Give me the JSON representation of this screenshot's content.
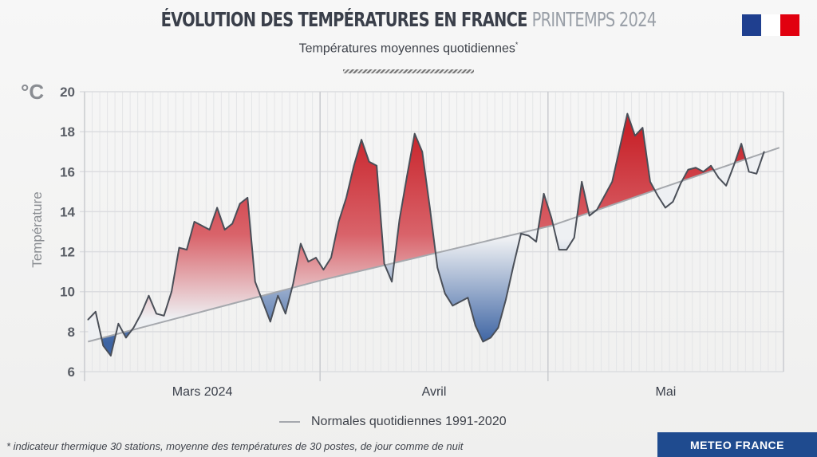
{
  "header": {
    "title_main": "ÉVOLUTION DES TEMPÉRATURES EN FRANCE",
    "title_light": "PRINTEMPS 2024",
    "subtitle": "Températures moyennes quotidiennes",
    "subtitle_mark": "*"
  },
  "logo": {
    "name": "republique-francaise-marianne",
    "colors": [
      "#1f3f8f",
      "#ffffff",
      "#e1000f"
    ]
  },
  "chart_data": {
    "type": "area",
    "title": "Températures moyennes quotidiennes",
    "unit": "°C",
    "ylabel": "Température",
    "xlabel": "",
    "ylim": [
      6,
      20
    ],
    "yticks": [
      6,
      8,
      10,
      12,
      14,
      16,
      18,
      20
    ],
    "months": [
      {
        "label": "Mars 2024",
        "days": 31
      },
      {
        "label": "Avril",
        "days": 30
      },
      {
        "label": "Mai",
        "days": 31
      }
    ],
    "grid": true,
    "series": [
      {
        "name": "Température moyenne quotidienne",
        "start": "2024-03-01",
        "values": [
          8.6,
          9.0,
          7.3,
          6.8,
          8.4,
          7.7,
          8.2,
          8.9,
          9.8,
          8.9,
          8.8,
          10.0,
          12.2,
          12.1,
          13.5,
          13.3,
          13.1,
          14.2,
          13.1,
          13.4,
          14.4,
          14.7,
          10.5,
          9.5,
          8.5,
          9.8,
          8.9,
          10.4,
          12.4,
          11.5,
          11.7,
          11.1,
          11.7,
          13.5,
          14.7,
          16.3,
          17.6,
          16.5,
          16.3,
          11.4,
          10.5,
          13.6,
          15.8,
          17.9,
          17.0,
          14.2,
          11.2,
          9.9,
          9.3,
          9.5,
          9.7,
          8.3,
          7.5,
          7.7,
          8.2,
          9.6,
          11.3,
          12.9,
          12.8,
          12.5,
          14.9,
          13.7,
          12.1,
          12.1,
          12.7,
          15.5,
          13.8,
          14.1,
          14.8,
          15.5,
          17.2,
          18.9,
          17.8,
          18.2,
          15.5,
          14.8,
          14.2,
          14.5,
          15.4,
          16.1,
          16.2,
          16.0,
          16.3,
          15.7,
          15.3,
          16.3,
          17.4,
          16.0,
          15.9,
          17.0
        ]
      },
      {
        "name": "Normales quotidiennes 1991-2020",
        "anchors": [
          {
            "day": 0,
            "value": 7.5
          },
          {
            "day": 31,
            "value": 10.6
          },
          {
            "day": 61,
            "value": 13.3
          },
          {
            "day": 91,
            "value": 17.2
          }
        ]
      }
    ],
    "colors": {
      "above": "#c8242b",
      "below": "#3d64a3",
      "line": "#4a4f58",
      "normal": "#a5a8ad"
    },
    "legend": {
      "position": "bottom",
      "entries": [
        "Normales quotidiennes 1991-2020"
      ]
    }
  },
  "footnote": "* indicateur thermique 30 stations, moyenne des températures de 30 postes, de jour comme de nuit",
  "brand": "METEO FRANCE"
}
